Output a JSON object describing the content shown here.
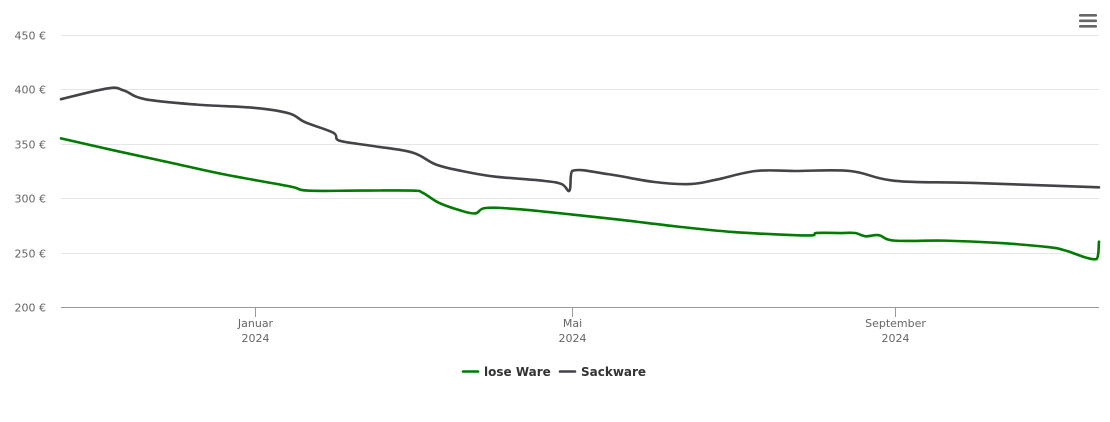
{
  "chart_data": {
    "type": "line",
    "title": "",
    "xlabel": "",
    "ylabel": "",
    "currency_suffix": " €",
    "ylim": [
      200,
      450
    ],
    "yticks": [
      {
        "value": 200,
        "label": "200 €"
      },
      {
        "value": 250,
        "label": "250 €"
      },
      {
        "value": 300,
        "label": "300 €"
      },
      {
        "value": 350,
        "label": "350 €"
      },
      {
        "value": 400,
        "label": "400 €"
      },
      {
        "value": 450,
        "label": "450 €"
      }
    ],
    "xlim": [
      "2023-10-19",
      "2024-11-18"
    ],
    "xticks": [
      {
        "date": "2024-01-01",
        "month": "Januar",
        "year": "2024"
      },
      {
        "date": "2024-05-01",
        "month": "Mai",
        "year": "2024"
      },
      {
        "date": "2024-09-01",
        "month": "September",
        "year": "2024"
      }
    ],
    "grid": true,
    "legend_position": "bottom-center",
    "series": [
      {
        "name": "lose Ware",
        "color": "#007a00",
        "points": [
          [
            "2023-10-19",
            355
          ],
          [
            "2023-11-10",
            343
          ],
          [
            "2023-12-01",
            332
          ],
          [
            "2023-12-20",
            322
          ],
          [
            "2024-01-14",
            311
          ],
          [
            "2024-01-21",
            307
          ],
          [
            "2024-02-10",
            307
          ],
          [
            "2024-03-01",
            307
          ],
          [
            "2024-03-05",
            305
          ],
          [
            "2024-03-11",
            296
          ],
          [
            "2024-03-19",
            289
          ],
          [
            "2024-03-25",
            286
          ],
          [
            "2024-03-29",
            291
          ],
          [
            "2024-04-10",
            290
          ],
          [
            "2024-05-01",
            285
          ],
          [
            "2024-05-20",
            280
          ],
          [
            "2024-06-10",
            274
          ],
          [
            "2024-07-01",
            269
          ],
          [
            "2024-07-25",
            266
          ],
          [
            "2024-08-01",
            266
          ],
          [
            "2024-08-02",
            268
          ],
          [
            "2024-08-12",
            268
          ],
          [
            "2024-08-17",
            268
          ],
          [
            "2024-08-21",
            265
          ],
          [
            "2024-08-26",
            266
          ],
          [
            "2024-09-01",
            261
          ],
          [
            "2024-09-20",
            261
          ],
          [
            "2024-10-10",
            259
          ],
          [
            "2024-10-30",
            255
          ],
          [
            "2024-11-05",
            252
          ],
          [
            "2024-11-17",
            244
          ],
          [
            "2024-11-18",
            260
          ]
        ]
      },
      {
        "name": "Sackware",
        "color": "#434348",
        "points": [
          [
            "2023-10-19",
            391
          ],
          [
            "2023-11-06",
            401
          ],
          [
            "2023-11-12",
            399
          ],
          [
            "2023-11-20",
            391
          ],
          [
            "2023-12-10",
            386
          ],
          [
            "2024-01-01",
            383
          ],
          [
            "2024-01-14",
            378
          ],
          [
            "2024-01-20",
            370
          ],
          [
            "2024-01-31",
            360
          ],
          [
            "2024-02-02",
            353
          ],
          [
            "2024-02-15",
            348
          ],
          [
            "2024-03-01",
            342
          ],
          [
            "2024-03-10",
            331
          ],
          [
            "2024-03-20",
            325
          ],
          [
            "2024-04-01",
            320
          ],
          [
            "2024-04-20",
            316
          ],
          [
            "2024-04-27",
            313
          ],
          [
            "2024-04-30",
            307
          ],
          [
            "2024-05-01",
            325
          ],
          [
            "2024-05-15",
            322
          ],
          [
            "2024-06-01",
            315
          ],
          [
            "2024-06-15",
            313
          ],
          [
            "2024-06-25",
            317
          ],
          [
            "2024-07-10",
            325
          ],
          [
            "2024-07-25",
            325
          ],
          [
            "2024-08-15",
            325
          ],
          [
            "2024-09-01",
            316
          ],
          [
            "2024-10-01",
            314
          ],
          [
            "2024-11-18",
            310
          ]
        ]
      }
    ]
  },
  "toolbar": {
    "menu_icon": "hamburger-menu-icon"
  }
}
